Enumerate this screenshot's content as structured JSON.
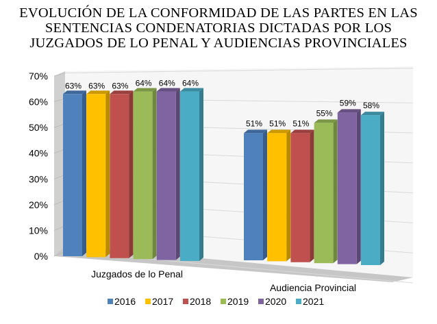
{
  "chart_data": {
    "type": "bar",
    "title_lines": [
      "EVOLUCIÓN DE LA CONFORMIDAD DE LAS PARTES EN LAS",
      "SENTENCIAS CONDENATORIAS DICTADAS POR LOS",
      "JUZGADOS DE LO PENAL Y AUDIENCIAS PROVINCIALES"
    ],
    "categories": [
      "Juzgados de lo Penal",
      "Audiencia Provincial"
    ],
    "series": [
      {
        "name": "2016",
        "values": [
          63,
          51
        ],
        "color": "#4f81bd"
      },
      {
        "name": "2017",
        "values": [
          63,
          51
        ],
        "color": "#ffc000"
      },
      {
        "name": "2018",
        "values": [
          63,
          51
        ],
        "color": "#c0504d"
      },
      {
        "name": "2019",
        "values": [
          64,
          55
        ],
        "color": "#9bbb59"
      },
      {
        "name": "2020",
        "values": [
          64,
          59
        ],
        "color": "#8064a2"
      },
      {
        "name": "2021",
        "values": [
          64,
          58
        ],
        "color": "#4bacc6"
      }
    ],
    "data_labels": [
      [
        "63%",
        "51%"
      ],
      [
        "63%",
        "51%"
      ],
      [
        "63%",
        "51%"
      ],
      [
        "64%",
        "55%"
      ],
      [
        "64%",
        "59%"
      ],
      [
        "64%",
        "58%"
      ]
    ],
    "y_ticks": [
      "0%",
      "10%",
      "20%",
      "30%",
      "40%",
      "50%",
      "60%",
      "70%"
    ],
    "ylim": [
      0,
      70
    ],
    "grid": true,
    "legend": "bottom",
    "style": "3d-clustered-column"
  }
}
